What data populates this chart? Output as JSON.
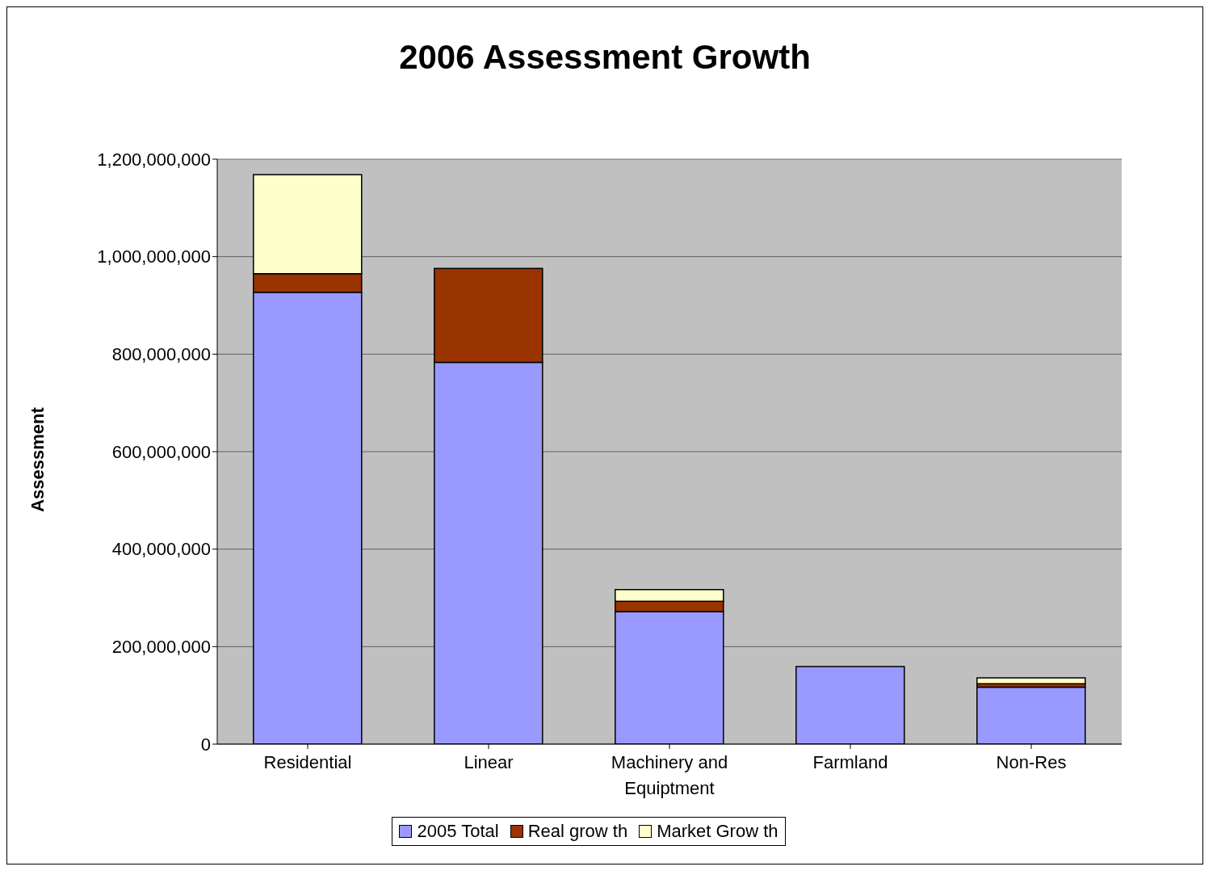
{
  "chart_data": {
    "type": "bar",
    "title": "2006 Assessment Growth",
    "ylabel": "Assessment",
    "categories": [
      "Residential",
      "Linear",
      "Machinery and Equiptment",
      "Farmland",
      "Non-Res"
    ],
    "series": [
      {
        "name": "2005 Total",
        "color": "#9999ff",
        "values": [
          927000000,
          783000000,
          272000000,
          159000000,
          117000000
        ]
      },
      {
        "name": "Real grow th",
        "color": "#993300",
        "values": [
          38000000,
          193000000,
          21000000,
          0,
          7000000
        ]
      },
      {
        "name": "Market Grow th",
        "color": "#ffffcc",
        "values": [
          203000000,
          0,
          24000000,
          0,
          12000000
        ]
      }
    ],
    "stacked": true,
    "ylim": [
      0,
      1200000000
    ],
    "yticks": [
      0,
      {
        "value": 200000000,
        "label": "200,000,000"
      },
      {
        "value": 400000000,
        "label": "400,000,000"
      },
      {
        "value": 600000000,
        "label": "600,000,000"
      },
      {
        "value": 800000000,
        "label": "800,000,000"
      },
      {
        "value": 1000000000,
        "label": "1,000,000,000"
      },
      {
        "value": 1200000000,
        "label": "1,200,000,000"
      }
    ],
    "grid": "y",
    "legend": "bottom"
  }
}
